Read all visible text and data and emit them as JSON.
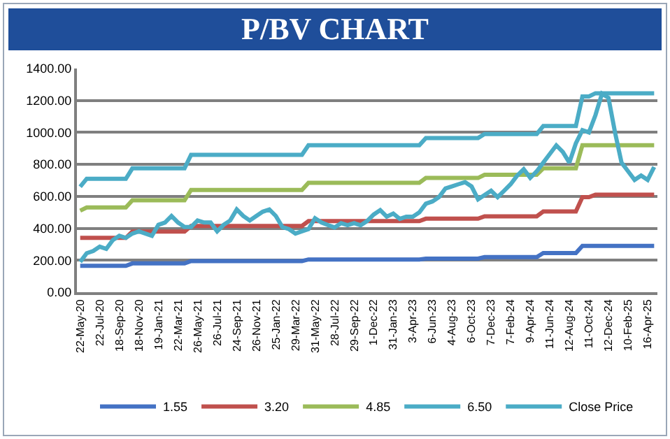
{
  "chart_data": {
    "type": "line",
    "title": "P/BV CHART",
    "categories": [
      "22-May-20",
      null,
      null,
      "22-Jul-20",
      null,
      null,
      "18-Sep-20",
      null,
      null,
      "18-Nov-20",
      null,
      null,
      "19-Jan-21",
      null,
      null,
      "22-Mar-21",
      null,
      null,
      "26-May-21",
      null,
      null,
      "26-Jul-21",
      null,
      null,
      "24-Sep-21",
      null,
      null,
      "26-Nov-21",
      null,
      null,
      "25-Jan-22",
      null,
      null,
      "29-Mar-22",
      null,
      null,
      "31-May-22",
      null,
      null,
      "28-Jul-22",
      null,
      null,
      "29-Sep-22",
      null,
      null,
      "1-Dec-22",
      null,
      null,
      "31-Jan-23",
      null,
      null,
      "3-Apr-23",
      null,
      null,
      "6-Jun-23",
      null,
      null,
      "4-Aug-23",
      null,
      null,
      "6-Oct-23",
      null,
      null,
      "7-Dec-23",
      null,
      null,
      "7-Feb-24",
      null,
      null,
      "9-Apr-24",
      null,
      null,
      "11-Jun-24",
      null,
      null,
      "12-Aug-24",
      null,
      null,
      "11-Oct-24",
      null,
      null,
      "12-Dec-24",
      null,
      null,
      "10-Feb-25",
      null,
      null,
      "16-Apr-25",
      null
    ],
    "series": [
      {
        "name": "1.55",
        "color": "#4472c4",
        "values": [
          165,
          165,
          165,
          165,
          165,
          165,
          165,
          165,
          180,
          180,
          180,
          180,
          180,
          180,
          180,
          180,
          180,
          195,
          195,
          195,
          195,
          195,
          195,
          195,
          195,
          195,
          195,
          195,
          195,
          195,
          195,
          195,
          195,
          195,
          195,
          205,
          205,
          205,
          205,
          205,
          205,
          205,
          205,
          205,
          205,
          205,
          205,
          205,
          205,
          205,
          205,
          205,
          205,
          210,
          210,
          210,
          210,
          210,
          210,
          210,
          210,
          210,
          220,
          220,
          220,
          220,
          220,
          220,
          220,
          220,
          220,
          245,
          245,
          245,
          245,
          245,
          245,
          290,
          290,
          290,
          290,
          290,
          290,
          290,
          290,
          290,
          290,
          290,
          290
        ]
      },
      {
        "name": "3.20",
        "color": "#c0504d",
        "values": [
          340,
          340,
          340,
          340,
          340,
          340,
          340,
          340,
          380,
          380,
          380,
          380,
          380,
          380,
          380,
          380,
          380,
          415,
          415,
          415,
          415,
          415,
          415,
          415,
          415,
          415,
          415,
          415,
          415,
          415,
          415,
          415,
          415,
          415,
          415,
          445,
          445,
          445,
          445,
          445,
          445,
          445,
          445,
          445,
          445,
          445,
          445,
          445,
          445,
          445,
          445,
          445,
          445,
          460,
          460,
          460,
          460,
          460,
          460,
          460,
          460,
          460,
          475,
          475,
          475,
          475,
          475,
          475,
          475,
          475,
          475,
          505,
          505,
          505,
          505,
          505,
          505,
          595,
          595,
          610,
          610,
          610,
          610,
          610,
          610,
          610,
          610,
          610,
          610
        ]
      },
      {
        "name": "4.85",
        "color": "#9bbb59",
        "values": [
          510,
          530,
          530,
          530,
          530,
          530,
          530,
          530,
          575,
          575,
          575,
          575,
          575,
          575,
          575,
          575,
          575,
          640,
          640,
          640,
          640,
          640,
          640,
          640,
          640,
          640,
          640,
          640,
          640,
          640,
          640,
          640,
          640,
          640,
          640,
          685,
          685,
          685,
          685,
          685,
          685,
          685,
          685,
          685,
          685,
          685,
          685,
          685,
          685,
          685,
          685,
          685,
          685,
          715,
          715,
          715,
          715,
          715,
          715,
          715,
          715,
          715,
          735,
          735,
          735,
          735,
          735,
          735,
          735,
          735,
          735,
          775,
          775,
          775,
          775,
          775,
          775,
          920,
          920,
          920,
          920,
          920,
          920,
          920,
          920,
          920,
          920,
          920,
          920
        ]
      },
      {
        "name": "6.50",
        "color": "#4bacc6",
        "values": [
          660,
          710,
          710,
          710,
          710,
          710,
          710,
          710,
          775,
          775,
          775,
          775,
          775,
          775,
          775,
          775,
          775,
          860,
          860,
          860,
          860,
          860,
          860,
          860,
          860,
          860,
          860,
          860,
          860,
          860,
          860,
          860,
          860,
          860,
          860,
          920,
          920,
          920,
          920,
          920,
          920,
          920,
          920,
          920,
          920,
          920,
          920,
          920,
          920,
          920,
          920,
          920,
          920,
          965,
          965,
          965,
          965,
          965,
          965,
          965,
          965,
          965,
          990,
          990,
          990,
          990,
          990,
          990,
          990,
          990,
          990,
          1040,
          1040,
          1040,
          1040,
          1040,
          1040,
          1225,
          1225,
          1245,
          1245,
          1245,
          1245,
          1245,
          1245,
          1245,
          1245,
          1245,
          1245
        ]
      },
      {
        "name": "Close Price",
        "color": "#4bacc6",
        "values": [
          190,
          244,
          258,
          285,
          271,
          326,
          353,
          340,
          367,
          381,
          367,
          353,
          422,
          436,
          477,
          436,
          408,
          408,
          449,
          436,
          436,
          381,
          422,
          449,
          518,
          477,
          449,
          477,
          504,
          518,
          477,
          408,
          395,
          367,
          381,
          395,
          463,
          436,
          420,
          405,
          432,
          419,
          432,
          419,
          446,
          486,
          514,
          473,
          492,
          459,
          473,
          473,
          500,
          554,
          568,
          595,
          649,
          662,
          676,
          689,
          662,
          581,
          608,
          635,
          595,
          635,
          676,
          730,
          770,
          716,
          757,
          811,
          865,
          919,
          878,
          811,
          932,
          1014,
          1000,
          1108,
          1243,
          1216,
          1000,
          811,
          757,
          703,
          730,
          703,
          784
        ]
      }
    ],
    "ylim": [
      0,
      1400
    ],
    "yticks": [
      {
        "value": 0,
        "label": "0.00"
      },
      {
        "value": 200,
        "label": "200.00"
      },
      {
        "value": 400,
        "label": "400.00"
      },
      {
        "value": 600,
        "label": "600.00"
      },
      {
        "value": 800,
        "label": "800.00"
      },
      {
        "value": 1000,
        "label": "1000.00"
      },
      {
        "value": 1200,
        "label": "1200.00"
      },
      {
        "value": 1400,
        "label": "1400.00"
      }
    ],
    "grid": "y",
    "legend": "bottom",
    "marker": "none",
    "line_style": "solid"
  }
}
